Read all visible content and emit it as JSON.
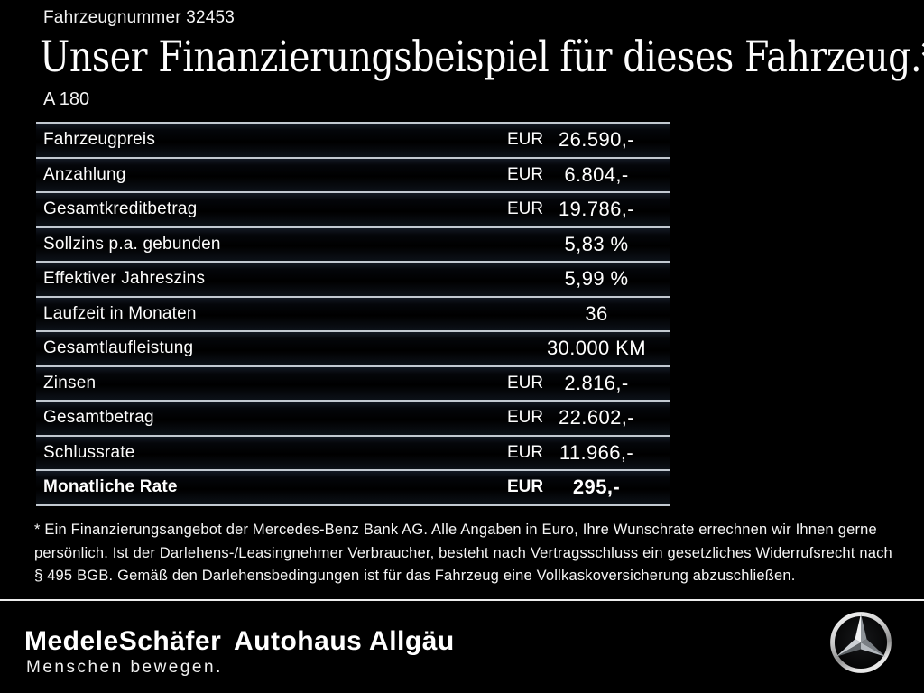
{
  "header": {
    "vehicle_number": "Fahrzeugnummer 32453",
    "title": "Unser Finanzierungsbeispiel für dieses Fahrzeug.*",
    "model": "A 180"
  },
  "table": {
    "currency_label": "EUR",
    "rows": [
      {
        "label": "Fahrzeugpreis",
        "currency": "EUR",
        "value": "26.590,-",
        "bold": false
      },
      {
        "label": "Anzahlung",
        "currency": "EUR",
        "value": "6.804,-",
        "bold": false
      },
      {
        "label": "Gesamtkreditbetrag",
        "currency": "EUR",
        "value": "19.786,-",
        "bold": false
      },
      {
        "label": "Sollzins p.a. gebunden",
        "currency": "",
        "value": "5,83 %",
        "bold": false
      },
      {
        "label": "Effektiver Jahreszins",
        "currency": "",
        "value": "5,99 %",
        "bold": false
      },
      {
        "label": "Laufzeit in Monaten",
        "currency": "",
        "value": "36",
        "bold": false
      },
      {
        "label": "Gesamtlaufleistung",
        "currency": "",
        "value": "30.000 KM",
        "bold": false
      },
      {
        "label": "Zinsen",
        "currency": "EUR",
        "value": "2.816,-",
        "bold": false
      },
      {
        "label": "Gesamtbetrag",
        "currency": "EUR",
        "value": "22.602,-",
        "bold": false
      },
      {
        "label": "Schlussrate",
        "currency": "EUR",
        "value": "11.966,-",
        "bold": false
      },
      {
        "label": "Monatliche Rate",
        "currency": "EUR",
        "value": "295,-",
        "bold": true
      }
    ]
  },
  "footnote_lines": [
    "* Ein Finanzierungsangebot der Mercedes-Benz Bank AG. Alle Angaben in Euro, Ihre Wunschrate errechnen wir Ihnen gerne",
    "persönlich. Ist der Darlehens-/Leasingnehmer Verbraucher, besteht nach Vertragsschluss ein gesetzliches Widerrufsrecht nach",
    "§ 495 BGB. Gemäß den Darlehensbedingungen ist für das Fahrzeug eine Vollkaskoversicherung abzuschließen."
  ],
  "footer": {
    "dealer_logo_1": "MedeleSchäfer",
    "dealer_logo_2": "Autohaus Allgäu",
    "tagline": "Menschen bewegen.",
    "brand_icon": "mercedes-star-icon"
  },
  "colors": {
    "background": "#000000",
    "text": "#ffffff",
    "separator_line": "#c2c9d1",
    "separator_glow": "#131923",
    "footer_divider": "#ececec"
  }
}
